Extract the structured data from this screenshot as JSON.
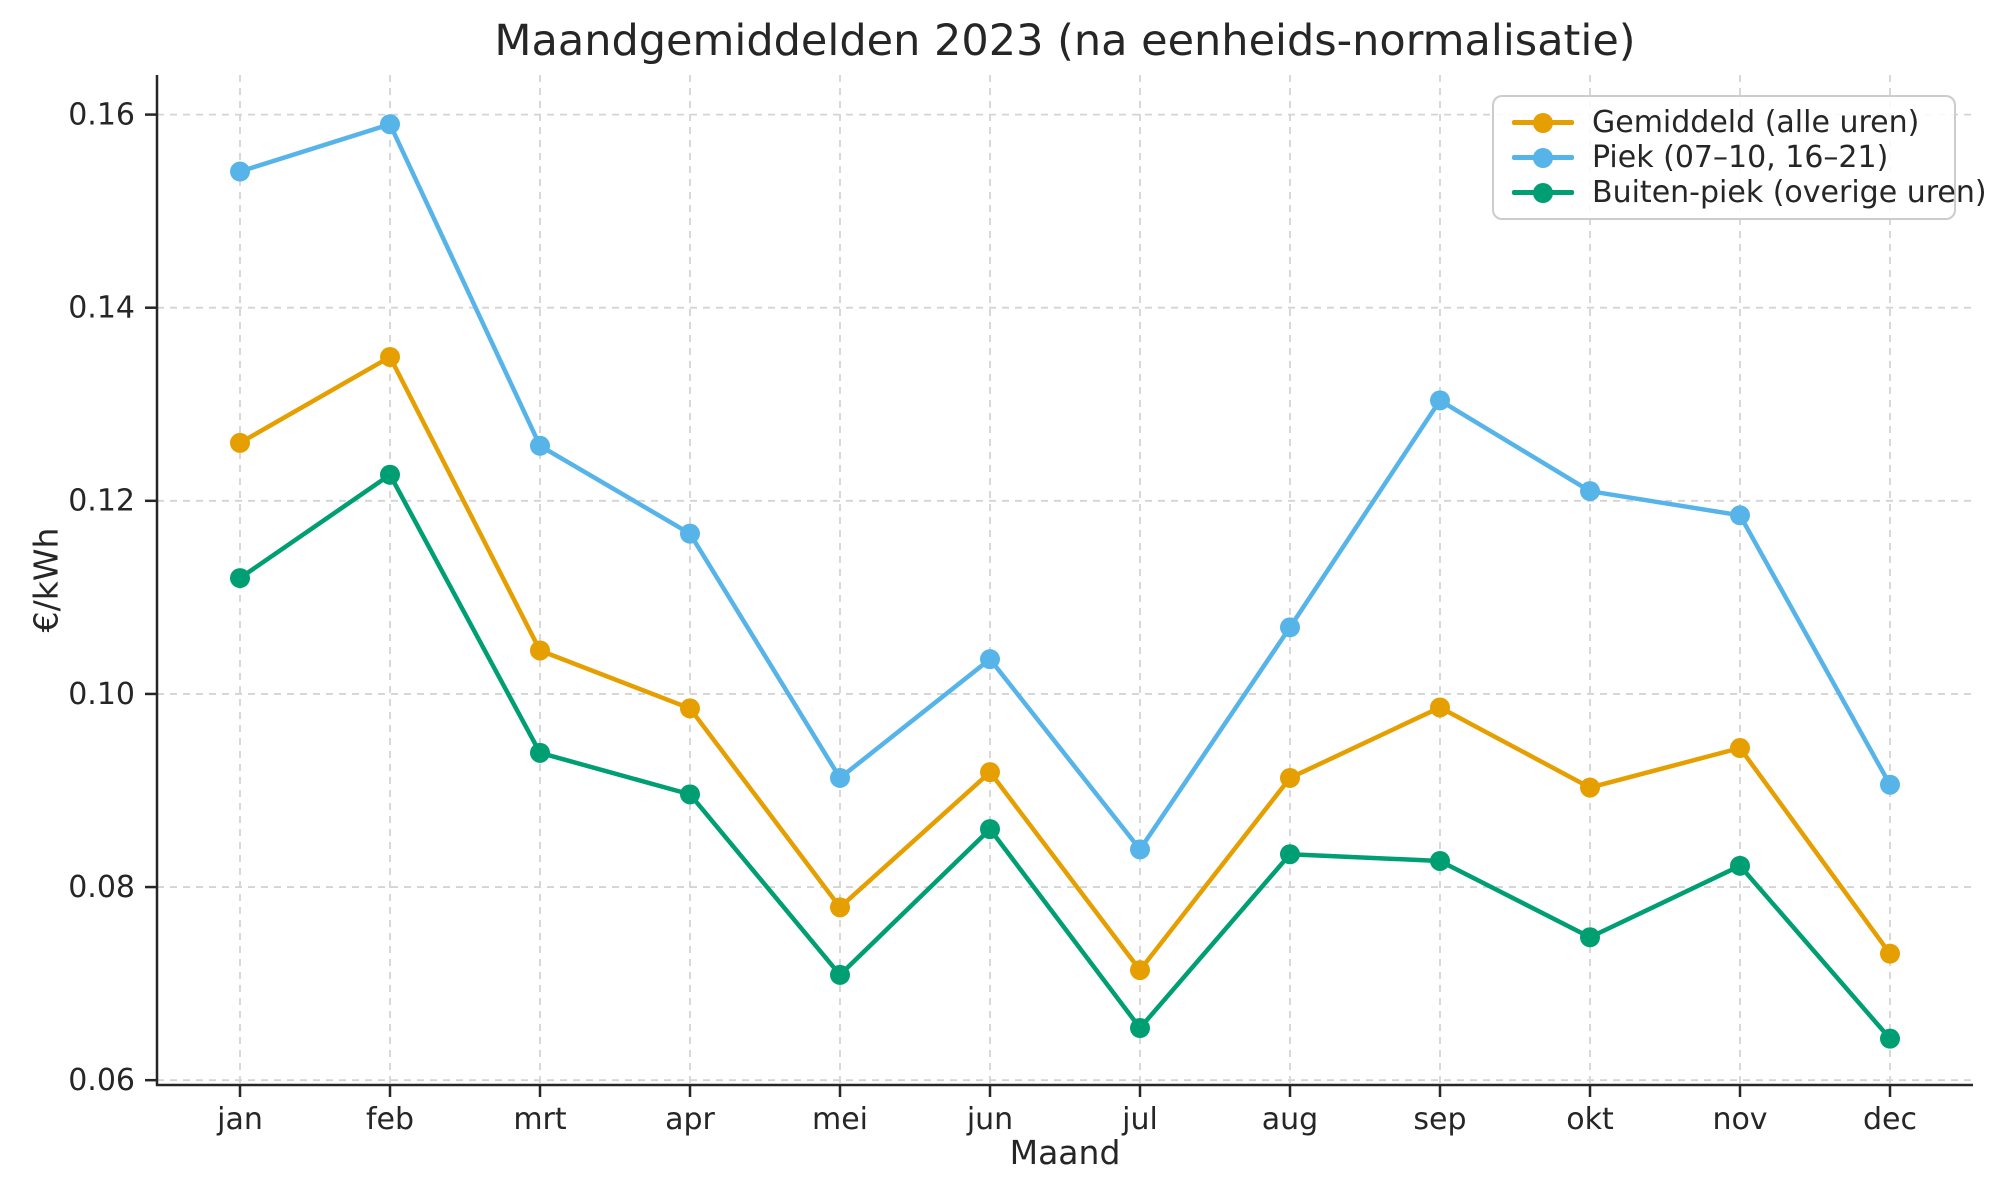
{
  "chart_data": {
    "type": "line",
    "title": "Maandgemiddelden 2023 (na eenheids-normalisatie)",
    "xlabel": "Maand",
    "ylabel": "€/kWh",
    "categories": [
      "jan",
      "feb",
      "mrt",
      "apr",
      "mei",
      "jun",
      "jul",
      "aug",
      "sep",
      "okt",
      "nov",
      "dec"
    ],
    "series": [
      {
        "name": "Gemiddeld (alle uren)",
        "color": "#E69F00",
        "values": [
          0.126,
          0.1349,
          0.1045,
          0.0985,
          0.0779,
          0.0919,
          0.0714,
          0.0913,
          0.0986,
          0.0903,
          0.0944,
          0.0731
        ]
      },
      {
        "name": "Piek (07–10, 16–21)",
        "color": "#56B4E9",
        "values": [
          0.1541,
          0.159,
          0.1257,
          0.1166,
          0.0913,
          0.1036,
          0.0839,
          0.1069,
          0.1304,
          0.121,
          0.1185,
          0.0906
        ]
      },
      {
        "name": "Buiten-piek (overige uren)",
        "color": "#009E73",
        "values": [
          0.112,
          0.1227,
          0.0939,
          0.0896,
          0.0709,
          0.086,
          0.0654,
          0.0834,
          0.0827,
          0.0748,
          0.0822,
          0.0643
        ]
      }
    ],
    "yticks": [
      0.06,
      0.08,
      0.1,
      0.12,
      0.14,
      0.16
    ],
    "ylim": [
      0.0595,
      0.1641
    ],
    "grid": true,
    "legend_position": "top-right",
    "colors": {
      "text": "#262626",
      "grid": "#d4d4d4",
      "spine": "#262626"
    }
  }
}
